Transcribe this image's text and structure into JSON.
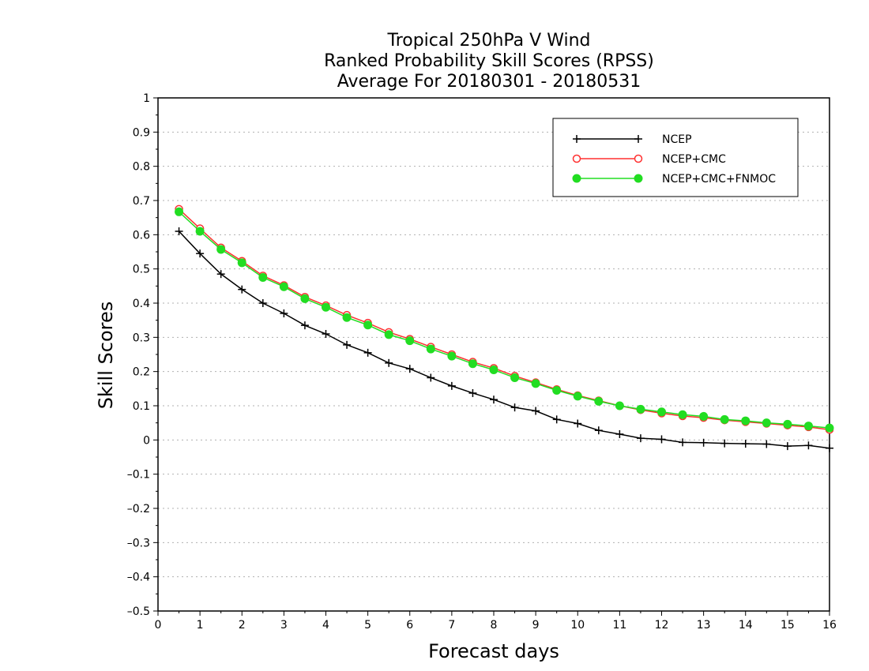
{
  "chart_data": {
    "type": "line",
    "title": [
      "Tropical 250hPa V Wind",
      "Ranked Probability Skill Scores (RPSS)",
      "Average For 20180301 - 20180531"
    ],
    "xlabel": "Forecast days",
    "ylabel": "Skill Scores",
    "xlim": [
      0,
      16
    ],
    "ylim": [
      -0.5,
      1
    ],
    "x_ticks": [
      0,
      1,
      2,
      3,
      4,
      5,
      6,
      7,
      8,
      9,
      10,
      11,
      12,
      13,
      14,
      15,
      16
    ],
    "x_tick_labels": [
      "0",
      "1",
      "2",
      "3",
      "4",
      "5",
      "6",
      "7",
      "8",
      "9",
      "10",
      "11",
      "12",
      "13",
      "14",
      "15",
      "16"
    ],
    "y_ticks": [
      -0.5,
      -0.4,
      -0.3,
      -0.2,
      -0.1,
      0,
      0.1,
      0.2,
      0.3,
      0.4,
      0.5,
      0.6,
      0.7,
      0.8,
      0.9,
      1
    ],
    "y_tick_labels": [
      "–0.5",
      "–0.4",
      "–0.3",
      "–0.2",
      "–0.1",
      "0",
      "0.1",
      "0.2",
      "0.3",
      "0.4",
      "0.5",
      "0.6",
      "0.7",
      "0.8",
      "0.9",
      "1"
    ],
    "grid": true,
    "legend_position": "top-right",
    "x": [
      0.5,
      1.0,
      1.5,
      2.0,
      2.5,
      3.0,
      3.5,
      4.0,
      4.5,
      5.0,
      5.5,
      6.0,
      6.5,
      7.0,
      7.5,
      8.0,
      8.5,
      9.0,
      9.5,
      10.0,
      10.5,
      11.0,
      11.5,
      12.0,
      12.5,
      13.0,
      13.5,
      14.0,
      14.5,
      15.0,
      15.5,
      16.0
    ],
    "series": [
      {
        "name": "NCEP",
        "color": "#000000",
        "marker": "plus",
        "values": [
          0.61,
          0.545,
          0.485,
          0.44,
          0.4,
          0.37,
          0.335,
          0.31,
          0.278,
          0.255,
          0.225,
          0.208,
          0.182,
          0.158,
          0.137,
          0.118,
          0.095,
          0.085,
          0.06,
          0.048,
          0.028,
          0.017,
          0.005,
          0.002,
          -0.007,
          -0.008,
          -0.01,
          -0.011,
          -0.012,
          -0.018,
          -0.016,
          -0.024
        ]
      },
      {
        "name": "NCEP+CMC",
        "color": "#ff3030",
        "marker": "open-circle",
        "values": [
          0.675,
          0.618,
          0.562,
          0.523,
          0.48,
          0.452,
          0.418,
          0.393,
          0.365,
          0.342,
          0.315,
          0.295,
          0.272,
          0.25,
          0.228,
          0.21,
          0.187,
          0.168,
          0.148,
          0.13,
          0.115,
          0.1,
          0.088,
          0.078,
          0.07,
          0.065,
          0.058,
          0.053,
          0.048,
          0.043,
          0.038,
          0.03
        ]
      },
      {
        "name": "NCEP+CMC+FNMOC",
        "color": "#22dd22",
        "marker": "filled-circle",
        "values": [
          0.667,
          0.61,
          0.557,
          0.518,
          0.475,
          0.448,
          0.413,
          0.388,
          0.358,
          0.336,
          0.308,
          0.29,
          0.266,
          0.245,
          0.223,
          0.205,
          0.182,
          0.165,
          0.145,
          0.128,
          0.113,
          0.1,
          0.09,
          0.082,
          0.074,
          0.069,
          0.06,
          0.056,
          0.05,
          0.046,
          0.041,
          0.035
        ]
      }
    ]
  }
}
